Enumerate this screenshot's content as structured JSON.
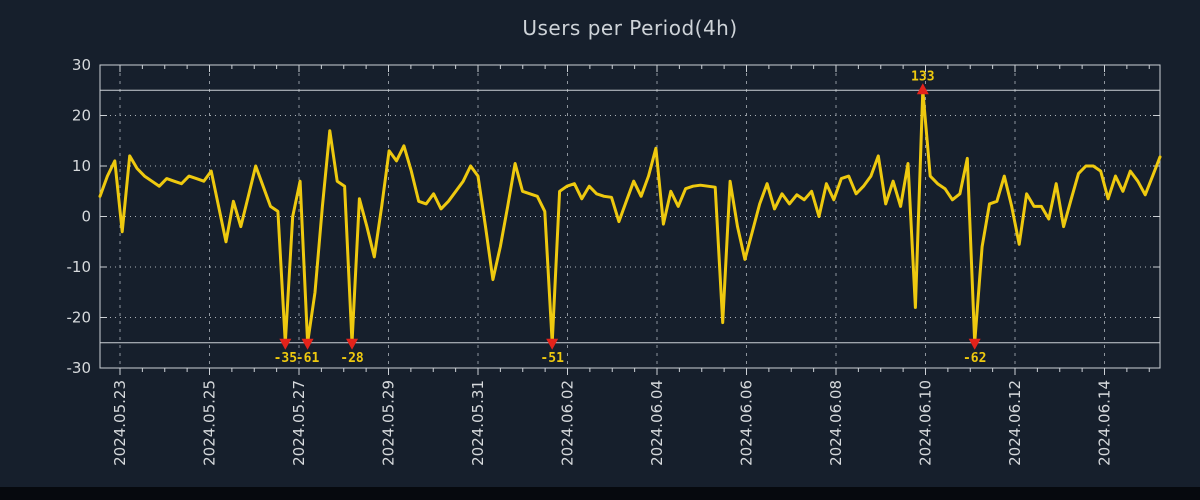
{
  "title": "Users per Period(4h)",
  "chart_data": {
    "type": "line",
    "title": "Users per Period(4h)",
    "series_name": "Users",
    "x_start": "2024-05-22 12:00",
    "x_interval_hours": 4,
    "values": [
      4,
      8,
      11,
      -3,
      12,
      9.5,
      8,
      7,
      6,
      7.5,
      7,
      6.5,
      8,
      7.5,
      7,
      9,
      2,
      -5,
      3,
      -2,
      4,
      10,
      6,
      2,
      1,
      -35,
      0,
      7,
      -61,
      -15,
      2,
      17,
      7,
      6,
      -28,
      3.5,
      -2,
      -8,
      2,
      13,
      11,
      14,
      9,
      3,
      2.5,
      4.5,
      1.5,
      3,
      5,
      7,
      10,
      8,
      -2,
      -12.5,
      -6,
      2,
      10.5,
      5,
      4.5,
      4,
      1,
      -51,
      5,
      6,
      6.5,
      3.5,
      6,
      4.5,
      4,
      3.8,
      -1,
      3,
      7,
      4,
      8,
      13.5,
      -1.5,
      5,
      2,
      5.5,
      6,
      6.2,
      6,
      5.8,
      -21,
      7,
      -2,
      -8.5,
      -3,
      2.5,
      6.5,
      1.5,
      4.5,
      2.5,
      4.3,
      3.3,
      5,
      0,
      6.5,
      3.3,
      7.5,
      8,
      4.5,
      6,
      8,
      12,
      2.5,
      7,
      2,
      10.5,
      -18,
      133,
      8,
      6.5,
      5.5,
      3.3,
      4.5,
      11.5,
      -62,
      -6,
      2.5,
      3,
      8,
      2,
      -5.5,
      4.5,
      2,
      2,
      -0.5,
      6.5,
      -2,
      3.3,
      8.5,
      10,
      10,
      9,
      3.5,
      8,
      5,
      9,
      7,
      4.3,
      8,
      11.8
    ],
    "y_axis": {
      "min": -30,
      "max": 30,
      "tick_labels": [
        "30",
        "20",
        "10",
        "0",
        "-10",
        "-20",
        "-30"
      ],
      "tick_values": [
        30,
        20,
        10,
        0,
        -10,
        -20,
        -30
      ]
    },
    "clip_lines": [
      25,
      -25
    ],
    "x_tick_labels": [
      "2024.05.23",
      "2024.05.25",
      "2024.05.27",
      "2024.05.29",
      "2024.05.31",
      "2024.06.02",
      "2024.06.04",
      "2024.06.06",
      "2024.06.08",
      "2024.06.10",
      "2024.06.12",
      "2024.06.14"
    ],
    "extreme_markers": [
      {
        "index": 25,
        "value": -35,
        "label": "-35",
        "direction": "down"
      },
      {
        "index": 28,
        "value": -61,
        "label": "-61",
        "direction": "down"
      },
      {
        "index": 34,
        "value": -28,
        "label": "-28",
        "direction": "down"
      },
      {
        "index": 61,
        "value": -51,
        "label": "-51",
        "direction": "down"
      },
      {
        "index": 111,
        "value": 133,
        "label": "133",
        "direction": "up"
      },
      {
        "index": 118,
        "value": -62,
        "label": "-62",
        "direction": "down"
      }
    ],
    "grid": true,
    "legend_position": "none",
    "colors": {
      "background": "#161f2c",
      "line": "#eec90f",
      "marker": "#e3231b",
      "marker_label": "#eec90f",
      "axis": "#ccd1d6",
      "grid_dotted": "#aab0b6",
      "grid_dashed": "#8f969e",
      "tick_text": "#d6d9dc",
      "title_text": "#ced3d8",
      "footer_bar": "#06090e"
    }
  }
}
